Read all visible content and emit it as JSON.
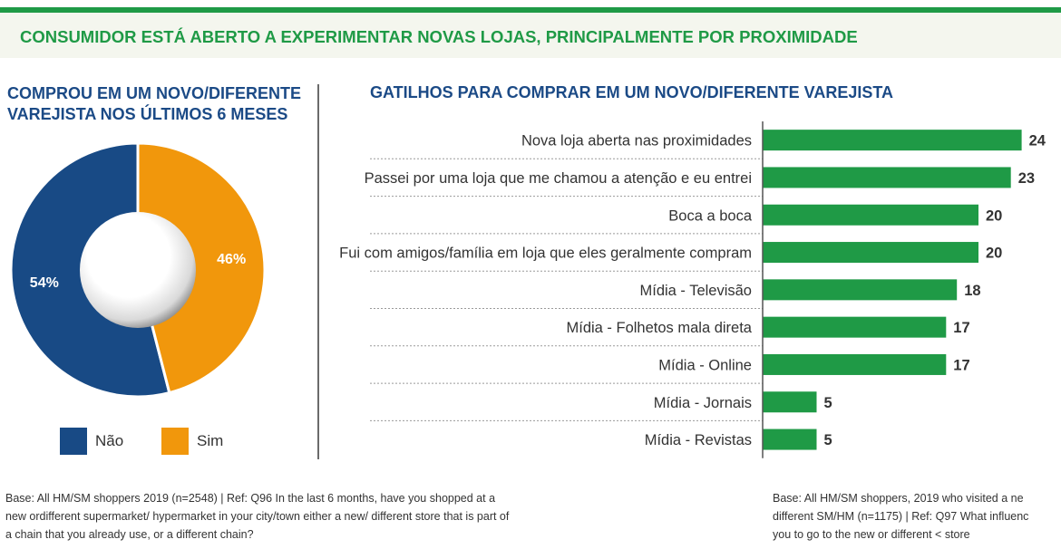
{
  "banner": {
    "title": "CONSUMIDOR ESTÁ ABERTO A EXPERIMENTAR NOVAS LOJAS, PRINCIPALMENTE POR PROXIMIDADE"
  },
  "colors": {
    "accent_green": "#1f9a46",
    "title_blue": "#1b4a86",
    "nao": "#184a85",
    "sim": "#f1970c",
    "bar": "#1f9a46"
  },
  "chart_data": [
    {
      "type": "pie",
      "title": "COMPROU EM UM NOVO/DIFERENTE VAREJISTA NOS ÚLTIMOS 6 MESES",
      "categories": [
        "Não",
        "Sim"
      ],
      "values": [
        54,
        46
      ],
      "labels": [
        "54%",
        "46%"
      ],
      "colors": [
        "#184a85",
        "#f1970c"
      ],
      "legend": "bottom",
      "donut": true
    },
    {
      "type": "bar",
      "orientation": "horizontal",
      "title": "GATILHOS PARA COMPRAR EM UM NOVO/DIFERENTE VAREJISTA",
      "categories": [
        "Nova loja aberta nas proximidades",
        "Passei por uma loja que me chamou a atenção e eu entrei",
        "Boca a boca",
        "Fui com amigos/família em loja que eles geralmente compram",
        "Mídia - Televisão",
        "Mídia - Folhetos mala direta",
        "Mídia - Online",
        "Mídia - Jornais",
        "Mídia - Revistas"
      ],
      "values": [
        24,
        23,
        20,
        20,
        18,
        17,
        17,
        5,
        5
      ],
      "xlim": [
        0,
        28
      ],
      "grid": false
    }
  ],
  "footnotes": {
    "left": "Base: All HM/SM shoppers 2019 (n=2548) | Ref: Q96 In the last 6 months, have you shopped at a new ordifferent supermarket/ hypermarket in your city/town either a new/ different store that is part of a chain that you already use, or a different chain?",
    "right_lines": [
      "Base: All HM/SM shoppers, 2019 who visited a ne",
      "different SM/HM (n=1175) | Ref: Q97 What influenc",
      "you to go to the new or different < store"
    ]
  }
}
